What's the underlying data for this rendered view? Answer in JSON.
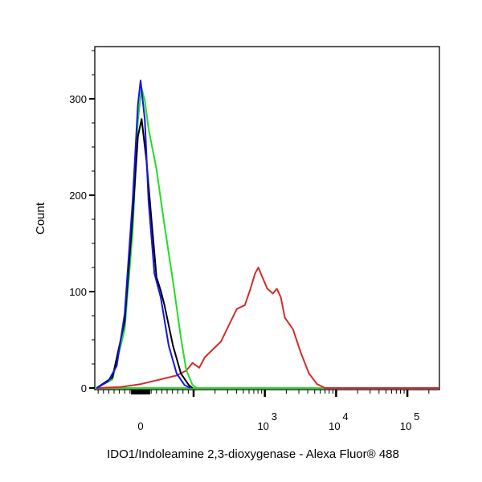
{
  "chart_data": {
    "type": "line",
    "title": "",
    "xlabel": "IDO1/Indoleamine 2,3-dioxygenase - Alexa Fluor® 488",
    "ylabel": "Count",
    "xscale": "biexponential",
    "ylim": [
      0,
      354
    ],
    "yticks": [
      {
        "value": 0,
        "label": "0"
      },
      {
        "value": 100,
        "label": "100"
      },
      {
        "value": 200,
        "label": "200"
      },
      {
        "value": 300,
        "label": "300"
      }
    ],
    "xticks": [
      {
        "value": 0,
        "label": "0",
        "exp": ""
      },
      {
        "value": 1000,
        "label": "10",
        "exp": "3"
      },
      {
        "value": 10000,
        "label": "10",
        "exp": "4"
      },
      {
        "value": 100000,
        "label": "10",
        "exp": "5"
      }
    ],
    "grid": false,
    "series": [
      {
        "name": "red",
        "color": "#d42a2a",
        "x": [
          -83,
          -38,
          0,
          38,
          68,
          86,
          98,
          120,
          144,
          186,
          241,
          312,
          404,
          524,
          628,
          731,
          811,
          923,
          1081,
          1297,
          1477,
          1677,
          1910,
          2478,
          3212,
          4164,
          5400,
          7000
        ],
        "y": [
          0,
          1,
          4,
          9,
          13,
          18,
          26,
          21,
          32,
          40,
          48,
          65,
          82,
          86,
          103,
          119,
          125,
          115,
          103,
          98,
          103,
          94,
          73,
          61,
          36,
          15,
          4,
          0
        ]
      },
      {
        "name": "green",
        "color": "#22dd22",
        "x": [
          -83,
          -53,
          -30,
          -15,
          -5,
          2,
          8,
          15,
          30,
          45,
          61,
          76,
          86,
          98,
          111
        ],
        "y": [
          0,
          9,
          61,
          161,
          278,
          311,
          298,
          269,
          227,
          169,
          111,
          52,
          19,
          3,
          0
        ]
      },
      {
        "name": "black",
        "color": "#000000",
        "x": [
          -83,
          -53,
          -30,
          -15,
          -5,
          2,
          11,
          20,
          30,
          38,
          45,
          61,
          76,
          91,
          98
        ],
        "y": [
          0,
          11,
          69,
          178,
          261,
          279,
          236,
          178,
          115,
          101,
          86,
          44,
          15,
          3,
          0
        ]
      },
      {
        "name": "blue",
        "color": "#1414e6",
        "x": [
          -83,
          -61,
          -45,
          -30,
          -15,
          -5,
          0,
          8,
          15,
          26,
          38,
          53,
          68,
          83,
          94
        ],
        "y": [
          0,
          7,
          23,
          77,
          194,
          294,
          319,
          278,
          194,
          119,
          94,
          44,
          15,
          3,
          0
        ]
      }
    ]
  }
}
